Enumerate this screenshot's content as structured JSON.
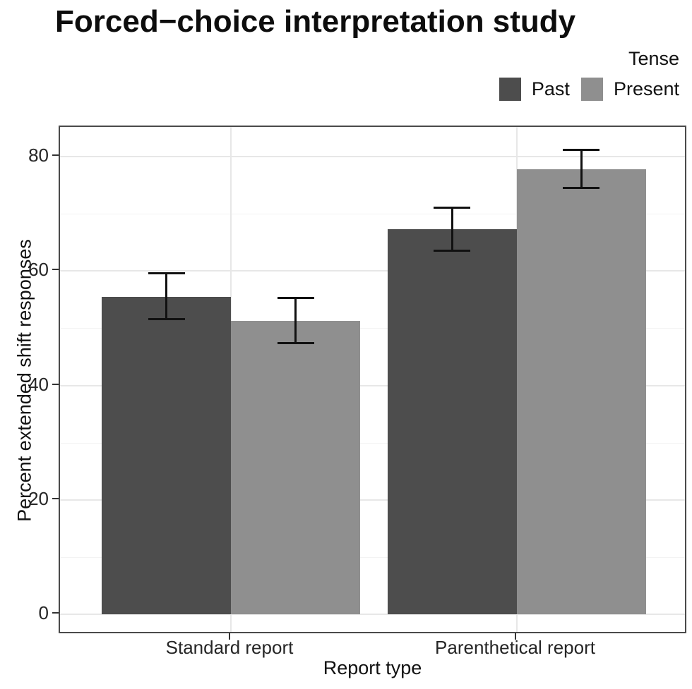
{
  "chart_data": {
    "type": "bar",
    "title": "Forced−choice interpretation study",
    "xlabel": "Report type",
    "ylabel": "Percent extended shift responses",
    "legend_title": "Tense",
    "legend_position": "top-right",
    "categories": [
      "Standard report",
      "Parenthetical report"
    ],
    "series": [
      {
        "name": "Past",
        "color": "#4d4d4d",
        "values": [
          55.5,
          67.3
        ],
        "ci_low": [
          51.4,
          63.4
        ],
        "ci_high": [
          59.8,
          71.3
        ]
      },
      {
        "name": "Present",
        "color": "#8f8f8f",
        "values": [
          51.3,
          77.8
        ],
        "ci_low": [
          47.2,
          74.3
        ],
        "ci_high": [
          55.5,
          81.3
        ]
      }
    ],
    "yticks": [
      0,
      20,
      40,
      60,
      80
    ],
    "yticks_minor": [
      10,
      30,
      50,
      70
    ],
    "ylim": [
      0,
      85
    ],
    "grid": true,
    "error_bars": true
  },
  "colors": {
    "bar_past": "#4d4d4d",
    "bar_present": "#8f8f8f",
    "panel_border": "#4a4a4a",
    "grid_major": "#e7e7e7",
    "grid_minor": "#f3f3f3",
    "error_bar": "#111111",
    "axis_text": "#262626",
    "title_text": "#0d0d0d"
  }
}
